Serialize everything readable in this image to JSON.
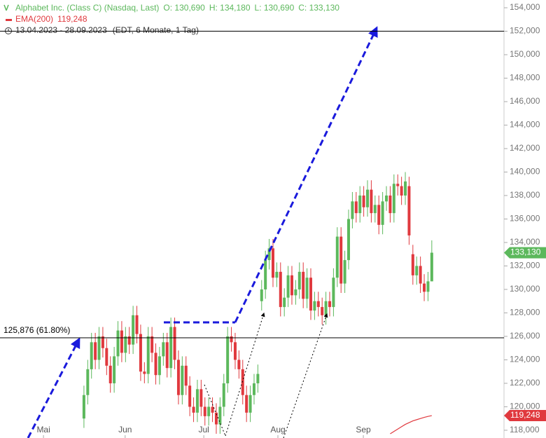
{
  "chart_data": {
    "type": "candlestick",
    "title": "Alphabet Inc. (Class C) (Nasdaq, Last)",
    "ohlc_labels": [
      "O: 130,690",
      "H: 134,180",
      "L: 130,690",
      "C: 133,130"
    ],
    "date_range": "13.04.2023 - 28.09.2023",
    "period": "(EDT, 6 Monate, 1 Tag)",
    "up_color": "#5cb85c",
    "down_color": "#e0393e",
    "open": [
      119000,
      121000,
      123200,
      125500,
      124000,
      126000,
      125000,
      123500,
      122000,
      124300,
      126500,
      124600,
      126000,
      125300,
      127800,
      126200,
      123000,
      122800,
      126000,
      124600,
      122700,
      124300,
      125500,
      123300,
      126800,
      124000,
      121000,
      123500,
      121800,
      120000,
      119500,
      121500,
      120000,
      119200,
      120000,
      119500,
      118500,
      120000,
      122000,
      126000,
      125500,
      124000,
      123200,
      121000,
      119500,
      121000,
      122000,
      129000,
      130000,
      132500,
      133500,
      131000,
      131500,
      128500,
      129300,
      131200,
      129500,
      130000,
      131500,
      129200,
      131000,
      128200,
      129000,
      128500,
      127800,
      129000,
      128500,
      131000,
      134500,
      130500,
      132500,
      136000,
      137500,
      136500,
      138000,
      137000,
      138500,
      136500,
      137200,
      135500,
      137500,
      138000,
      136500,
      139000,
      138800,
      138000,
      138800,
      133000,
      131200,
      132000,
      130500,
      129800,
      130690
    ],
    "high": [
      121800,
      124000,
      126300,
      126300,
      126800,
      126800,
      125800,
      124300,
      125100,
      127300,
      127300,
      126800,
      126800,
      128600,
      128600,
      127000,
      123800,
      126800,
      126800,
      125400,
      125100,
      126300,
      126300,
      127600,
      127600,
      124800,
      124300,
      124300,
      122600,
      120800,
      122300,
      122300,
      120800,
      120800,
      120800,
      120300,
      120800,
      122800,
      126800,
      126800,
      126300,
      124800,
      124000,
      121800,
      121800,
      122800,
      123600,
      130800,
      133300,
      134300,
      134300,
      132300,
      132300,
      130100,
      132000,
      132000,
      130800,
      132300,
      132300,
      131800,
      131800,
      129800,
      129800,
      129300,
      129800,
      129800,
      131800,
      135300,
      135300,
      133300,
      136800,
      138300,
      138300,
      138800,
      138800,
      139300,
      139300,
      138000,
      138000,
      138300,
      138800,
      138800,
      139800,
      139800,
      139600,
      140000,
      139600,
      133800,
      132800,
      132800,
      131300,
      131490,
      134180
    ],
    "low": [
      118200,
      120200,
      122400,
      123200,
      123200,
      124200,
      122700,
      121200,
      121200,
      123500,
      123800,
      123800,
      124500,
      124500,
      125400,
      122200,
      122000,
      122000,
      123800,
      121900,
      121900,
      123500,
      122500,
      122500,
      123200,
      120200,
      120200,
      121000,
      119200,
      118700,
      118700,
      119200,
      118400,
      118400,
      118700,
      117700,
      117700,
      119200,
      121200,
      124700,
      123200,
      122400,
      120200,
      118700,
      118700,
      120200,
      121200,
      128200,
      129200,
      131700,
      130200,
      130200,
      127700,
      127700,
      128500,
      128700,
      128700,
      129200,
      128400,
      128400,
      127400,
      127400,
      127700,
      127000,
      127000,
      127700,
      127700,
      130200,
      129700,
      129700,
      131700,
      135200,
      135700,
      135700,
      136200,
      136200,
      135700,
      135700,
      134700,
      134700,
      136700,
      135700,
      135700,
      138000,
      137200,
      137200,
      133800,
      130400,
      130400,
      129700,
      129000,
      129000,
      130690
    ],
    "close": [
      121000,
      123200,
      125500,
      124000,
      126000,
      125000,
      123500,
      122000,
      124300,
      126500,
      124600,
      126000,
      125300,
      127800,
      126200,
      123000,
      122800,
      126000,
      124600,
      122700,
      124300,
      125500,
      123300,
      126800,
      124000,
      121000,
      123500,
      121800,
      120000,
      119500,
      121500,
      120000,
      119200,
      120000,
      119500,
      118500,
      120000,
      122000,
      126000,
      125500,
      124000,
      123200,
      121000,
      119500,
      121000,
      122000,
      122800,
      130000,
      132500,
      133500,
      131000,
      131500,
      128500,
      129300,
      131200,
      129500,
      130000,
      131500,
      129200,
      131000,
      128200,
      129000,
      128500,
      127800,
      129000,
      128500,
      131000,
      134500,
      130500,
      132500,
      136000,
      137500,
      136500,
      138000,
      137000,
      138500,
      136500,
      137200,
      135500,
      137500,
      138000,
      136500,
      139000,
      138800,
      138000,
      139200,
      134600,
      131200,
      132000,
      130500,
      129800,
      130690,
      133130
    ],
    "last_label": "133,130",
    "ema": {
      "name": "EMA(200)",
      "color": "#e0393e",
      "value_label": "119,248",
      "values": [
        null,
        null,
        null,
        null,
        null,
        null,
        null,
        null,
        null,
        null,
        null,
        null,
        null,
        null,
        null,
        null,
        null,
        null,
        null,
        null,
        null,
        null,
        null,
        null,
        null,
        null,
        null,
        null,
        null,
        null,
        null,
        null,
        null,
        null,
        null,
        null,
        null,
        null,
        null,
        null,
        null,
        null,
        null,
        null,
        null,
        null,
        null,
        null,
        null,
        null,
        null,
        null,
        null,
        null,
        null,
        null,
        null,
        null,
        null,
        null,
        null,
        null,
        null,
        null,
        null,
        null,
        null,
        null,
        null,
        null,
        null,
        null,
        null,
        null,
        null,
        null,
        null,
        null,
        null,
        null,
        null,
        117700,
        117900,
        118100,
        118300,
        118500,
        118650,
        118800,
        118900,
        119000,
        119100,
        119180,
        119248
      ]
    },
    "levels": [
      {
        "value": 152000
      },
      {
        "value": 125876,
        "label": "125,876 (61.80%)"
      }
    ],
    "xlim": [
      -22.2,
      111.1
    ],
    "xticks": [
      {
        "value": -10.7,
        "label": "Mai"
      },
      {
        "value": 10.9,
        "label": "Jun"
      },
      {
        "value": 31.7,
        "label": "Jul"
      },
      {
        "value": 51.3,
        "label": "Aug"
      },
      {
        "value": 73.9,
        "label": "Sep"
      }
    ],
    "ylim": [
      117340,
      154660
    ],
    "yticks": [
      {
        "value": 118000,
        "label": "118,000"
      },
      {
        "value": 120000,
        "label": "120,000"
      },
      {
        "value": 122000,
        "label": "122,000"
      },
      {
        "value": 124000,
        "label": "124,000"
      },
      {
        "value": 126000,
        "label": "126,000"
      },
      {
        "value": 128000,
        "label": "128,000"
      },
      {
        "value": 130000,
        "label": "130,000"
      },
      {
        "value": 132000,
        "label": "132,000"
      },
      {
        "value": 134000,
        "label": "134,000"
      },
      {
        "value": 136000,
        "label": "136,000"
      },
      {
        "value": 138000,
        "label": "138,000"
      },
      {
        "value": 140000,
        "label": "140,000"
      },
      {
        "value": 142000,
        "label": "142,000"
      },
      {
        "value": 144000,
        "label": "144,000"
      },
      {
        "value": 146000,
        "label": "146,000"
      },
      {
        "value": 148000,
        "label": "148,000"
      },
      {
        "value": 150000,
        "label": "150,000"
      },
      {
        "value": 152000,
        "label": "152,000"
      },
      {
        "value": 154000,
        "label": "154,000"
      }
    ],
    "grid": false
  }
}
